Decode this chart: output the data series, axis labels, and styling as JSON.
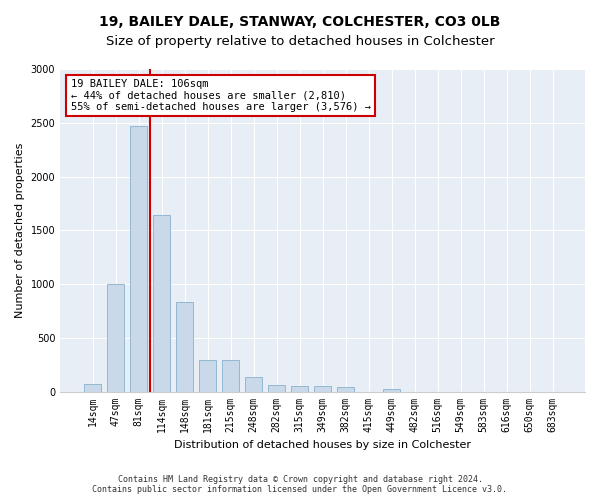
{
  "title": "19, BAILEY DALE, STANWAY, COLCHESTER, CO3 0LB",
  "subtitle": "Size of property relative to detached houses in Colchester",
  "xlabel": "Distribution of detached houses by size in Colchester",
  "ylabel": "Number of detached properties",
  "categories": [
    "14sqm",
    "47sqm",
    "81sqm",
    "114sqm",
    "148sqm",
    "181sqm",
    "215sqm",
    "248sqm",
    "282sqm",
    "315sqm",
    "349sqm",
    "382sqm",
    "415sqm",
    "449sqm",
    "482sqm",
    "516sqm",
    "549sqm",
    "583sqm",
    "616sqm",
    "650sqm",
    "683sqm"
  ],
  "values": [
    70,
    1000,
    2470,
    1640,
    830,
    290,
    290,
    135,
    65,
    55,
    55,
    40,
    0,
    25,
    0,
    0,
    0,
    0,
    0,
    0,
    0
  ],
  "bar_color": "#c9d9ea",
  "bar_edge_color": "#8ab0cc",
  "annotation_text": "19 BAILEY DALE: 106sqm\n← 44% of detached houses are smaller (2,810)\n55% of semi-detached houses are larger (3,576) →",
  "annotation_box_facecolor": "white",
  "annotation_box_edgecolor": "#cc0000",
  "vline_color": "#cc0000",
  "vline_x_index": 2.5,
  "ylim": [
    0,
    3000
  ],
  "yticks": [
    0,
    500,
    1000,
    1500,
    2000,
    2500,
    3000
  ],
  "footer_line1": "Contains HM Land Registry data © Crown copyright and database right 2024.",
  "footer_line2": "Contains public sector information licensed under the Open Government Licence v3.0.",
  "fig_facecolor": "#ffffff",
  "axes_facecolor": "#e8eef5",
  "title_fontsize": 10,
  "tick_fontsize": 7,
  "ylabel_fontsize": 8,
  "xlabel_fontsize": 8,
  "footer_fontsize": 6,
  "bar_width": 0.75
}
